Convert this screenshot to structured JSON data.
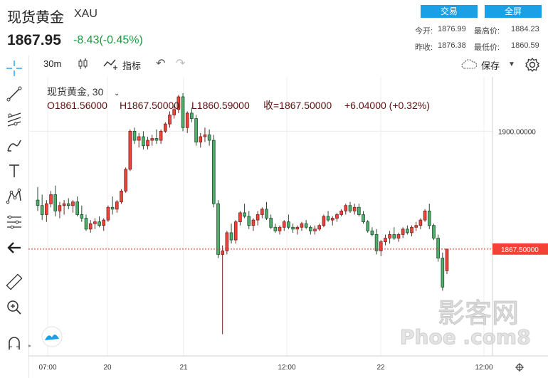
{
  "header": {
    "title": "现货黄金",
    "symbol": "XAU",
    "price": "1867.95",
    "change": "-8.43(-0.45%)",
    "trade_button": "交易",
    "fullscreen_button": "全屏",
    "stats": {
      "open_label": "今开:",
      "open": "1876.99",
      "high_label": "最高价:",
      "high": "1884.23",
      "prev_close_label": "昨收:",
      "prev_close": "1876.38",
      "low_label": "最低价:",
      "low": "1860.59"
    }
  },
  "toolbar": {
    "interval": "30m",
    "indicators_label": "指标",
    "save_label": "保存"
  },
  "legend": {
    "name": "现货黄金, 30",
    "open": "O1861.56000",
    "high": "H1867.50000",
    "low": "L1860.59000",
    "close": "收=1867.50000",
    "delta": "+6.04000 (+0.32%)"
  },
  "watermark": {
    "text": "影客网",
    "sub": "Phoe .com8"
  },
  "colors": {
    "up": "#f44336",
    "up_stroke": "#6f2626",
    "down": "#4caf6a",
    "down_stroke": "#244d31",
    "accent": "#1aa0e6",
    "price_line": "#c9302c"
  },
  "chart_data": {
    "type": "candlestick",
    "title": "现货黄金, 30",
    "x_ticks": [
      "07:00",
      "20",
      "21",
      "12:00",
      "22",
      "12:00"
    ],
    "y_ticks": [
      1900.0,
      1867.5
    ],
    "y_tick_labels": [
      "1900.00000",
      "1867.50000"
    ],
    "ylim": [
      1838,
      1915
    ],
    "last_price": 1867.5,
    "grid": true,
    "candles": [
      [
        1881.0,
        1884.6,
        1878.0,
        1879.5
      ],
      [
        1879.5,
        1882.5,
        1875.5,
        1877.0
      ],
      [
        1877.0,
        1881.0,
        1875.0,
        1880.0
      ],
      [
        1880.0,
        1883.5,
        1879.0,
        1882.5
      ],
      [
        1882.5,
        1885.0,
        1876.5,
        1878.0
      ],
      [
        1878.0,
        1880.5,
        1876.0,
        1879.5
      ],
      [
        1879.5,
        1881.0,
        1877.0,
        1880.0
      ],
      [
        1880.0,
        1881.5,
        1878.5,
        1879.5
      ],
      [
        1879.5,
        1881.0,
        1877.5,
        1880.5
      ],
      [
        1880.5,
        1882.0,
        1876.5,
        1877.0
      ],
      [
        1877.0,
        1879.5,
        1875.0,
        1876.0
      ],
      [
        1876.0,
        1877.0,
        1872.5,
        1873.0
      ],
      [
        1873.0,
        1875.5,
        1872.0,
        1874.5
      ],
      [
        1874.5,
        1876.0,
        1873.0,
        1875.0
      ],
      [
        1875.0,
        1876.5,
        1873.5,
        1874.0
      ],
      [
        1874.0,
        1876.0,
        1872.5,
        1875.5
      ],
      [
        1875.5,
        1879.5,
        1875.0,
        1879.0
      ],
      [
        1879.0,
        1882.0,
        1877.0,
        1878.5
      ],
      [
        1878.5,
        1881.0,
        1877.5,
        1880.5
      ],
      [
        1880.5,
        1884.0,
        1880.0,
        1883.5
      ],
      [
        1883.5,
        1890.0,
        1883.0,
        1889.5
      ],
      [
        1889.5,
        1900.5,
        1889.0,
        1900.0
      ],
      [
        1900.0,
        1901.0,
        1896.5,
        1897.5
      ],
      [
        1897.5,
        1899.5,
        1895.5,
        1898.5
      ],
      [
        1898.5,
        1900.0,
        1895.0,
        1896.0
      ],
      [
        1896.0,
        1898.5,
        1895.0,
        1897.5
      ],
      [
        1897.5,
        1899.0,
        1896.0,
        1898.0
      ],
      [
        1898.0,
        1900.5,
        1896.5,
        1897.5
      ],
      [
        1897.5,
        1900.5,
        1896.5,
        1900.0
      ],
      [
        1900.0,
        1902.5,
        1899.5,
        1902.0
      ],
      [
        1902.0,
        1905.5,
        1901.0,
        1904.5
      ],
      [
        1904.5,
        1907.0,
        1903.5,
        1906.0
      ],
      [
        1906.0,
        1910.0,
        1905.0,
        1909.5
      ],
      [
        1909.5,
        1910.5,
        1900.0,
        1901.0
      ],
      [
        1901.0,
        1905.5,
        1899.5,
        1905.0
      ],
      [
        1905.0,
        1906.5,
        1902.5,
        1903.5
      ],
      [
        1903.5,
        1904.5,
        1896.0,
        1897.0
      ],
      [
        1897.0,
        1899.5,
        1895.5,
        1898.5
      ],
      [
        1898.5,
        1901.0,
        1897.0,
        1899.0
      ],
      [
        1899.0,
        1900.5,
        1896.0,
        1897.5
      ],
      [
        1897.5,
        1899.0,
        1879.0,
        1880.0
      ],
      [
        1880.0,
        1881.0,
        1865.0,
        1866.0
      ],
      [
        1866.0,
        1868.5,
        1844.0,
        1867.0
      ],
      [
        1867.0,
        1872.5,
        1866.0,
        1872.0
      ],
      [
        1872.0,
        1874.5,
        1869.0,
        1870.0
      ],
      [
        1870.0,
        1875.5,
        1869.0,
        1875.0
      ],
      [
        1875.0,
        1878.0,
        1874.0,
        1877.5
      ],
      [
        1877.5,
        1880.0,
        1876.0,
        1876.5
      ],
      [
        1876.5,
        1878.0,
        1873.0,
        1874.0
      ],
      [
        1874.0,
        1876.0,
        1872.5,
        1875.5
      ],
      [
        1875.5,
        1878.0,
        1874.0,
        1877.0
      ],
      [
        1877.0,
        1879.0,
        1876.0,
        1878.5
      ],
      [
        1878.5,
        1880.5,
        1875.5,
        1876.0
      ],
      [
        1876.0,
        1877.0,
        1873.0,
        1873.5
      ],
      [
        1873.5,
        1874.5,
        1872.0,
        1872.5
      ],
      [
        1872.5,
        1874.0,
        1871.5,
        1873.5
      ],
      [
        1873.5,
        1875.5,
        1872.5,
        1875.0
      ],
      [
        1875.0,
        1877.0,
        1873.0,
        1873.5
      ],
      [
        1873.5,
        1874.5,
        1872.0,
        1873.0
      ],
      [
        1873.0,
        1874.0,
        1871.5,
        1873.5
      ],
      [
        1873.5,
        1875.0,
        1872.5,
        1874.5
      ],
      [
        1874.5,
        1875.5,
        1873.0,
        1873.5
      ],
      [
        1873.5,
        1874.0,
        1871.5,
        1872.5
      ],
      [
        1872.5,
        1874.0,
        1871.5,
        1873.0
      ],
      [
        1873.0,
        1874.5,
        1872.5,
        1874.0
      ],
      [
        1874.0,
        1877.0,
        1873.5,
        1876.5
      ],
      [
        1876.5,
        1878.0,
        1875.0,
        1875.5
      ],
      [
        1875.5,
        1876.5,
        1874.0,
        1876.0
      ],
      [
        1876.0,
        1877.5,
        1875.0,
        1877.0
      ],
      [
        1877.0,
        1878.5,
        1876.5,
        1878.0
      ],
      [
        1878.0,
        1880.0,
        1877.0,
        1879.5
      ],
      [
        1879.5,
        1880.5,
        1877.5,
        1878.0
      ],
      [
        1878.0,
        1880.0,
        1877.0,
        1879.0
      ],
      [
        1879.0,
        1880.0,
        1876.5,
        1877.0
      ],
      [
        1877.0,
        1878.0,
        1874.5,
        1875.0
      ],
      [
        1875.0,
        1875.5,
        1872.0,
        1872.5
      ],
      [
        1872.5,
        1873.5,
        1871.0,
        1871.5
      ],
      [
        1871.5,
        1873.0,
        1866.0,
        1867.0
      ],
      [
        1867.0,
        1870.0,
        1865.5,
        1869.5
      ],
      [
        1869.5,
        1871.5,
        1868.5,
        1870.5
      ],
      [
        1870.5,
        1872.5,
        1869.0,
        1871.5
      ],
      [
        1871.5,
        1873.5,
        1870.0,
        1870.5
      ],
      [
        1870.5,
        1872.0,
        1869.5,
        1871.5
      ],
      [
        1871.5,
        1873.5,
        1870.5,
        1873.0
      ],
      [
        1873.0,
        1874.0,
        1871.5,
        1872.0
      ],
      [
        1872.0,
        1874.0,
        1871.0,
        1873.5
      ],
      [
        1873.5,
        1875.0,
        1872.5,
        1874.0
      ],
      [
        1874.0,
        1876.0,
        1873.0,
        1875.5
      ],
      [
        1875.5,
        1878.5,
        1875.0,
        1878.0
      ],
      [
        1878.0,
        1880.0,
        1873.0,
        1874.0
      ],
      [
        1874.0,
        1874.5,
        1870.0,
        1870.5
      ],
      [
        1870.5,
        1871.5,
        1864.0,
        1865.0
      ],
      [
        1865.0,
        1866.5,
        1856.0,
        1857.0
      ],
      [
        1861.5,
        1867.5,
        1860.6,
        1867.5
      ]
    ]
  }
}
